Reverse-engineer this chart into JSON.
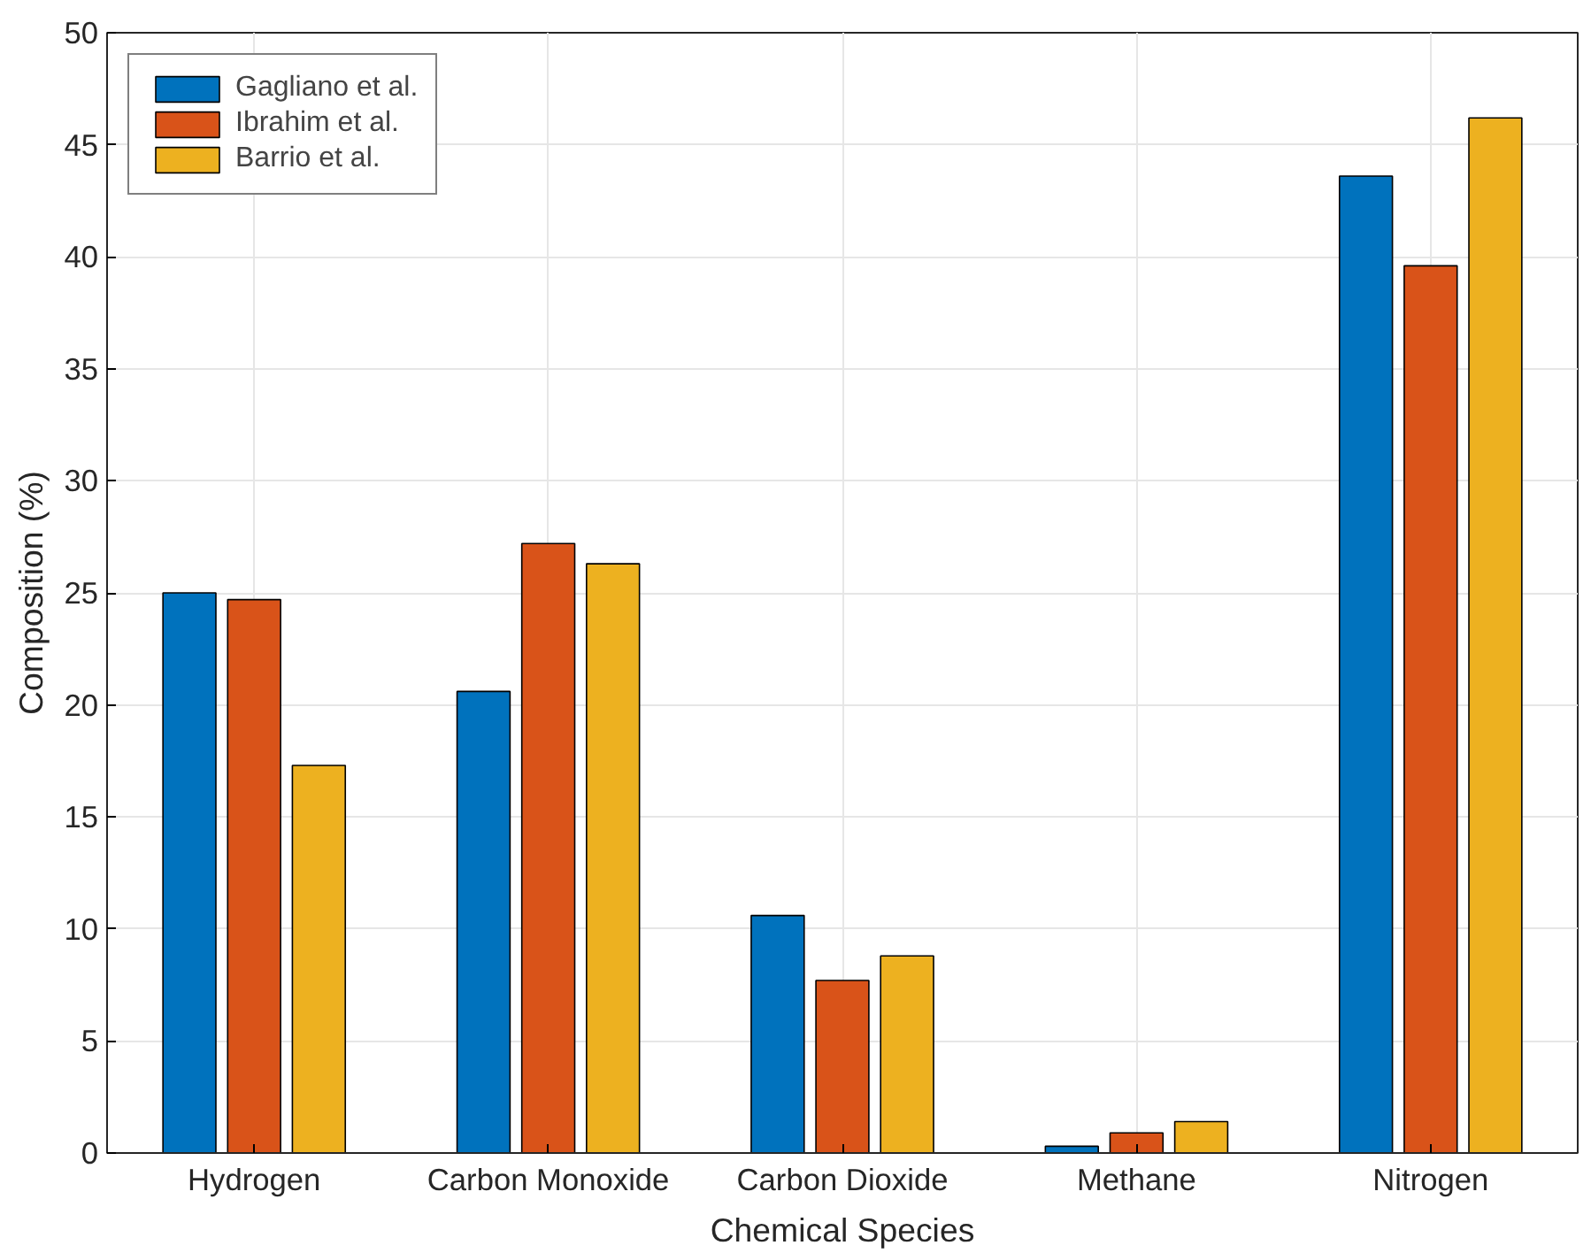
{
  "chart_data": {
    "type": "bar",
    "xlabel": "Chemical Species",
    "ylabel": "Composition (%)",
    "categories": [
      "Hydrogen",
      "Carbon Monoxide",
      "Carbon Dioxide",
      "Methane",
      "Nitrogen"
    ],
    "series": [
      {
        "name": "Gagliano et al.",
        "color": "#0072bd",
        "values": [
          25.0,
          20.6,
          10.6,
          0.3,
          43.6
        ]
      },
      {
        "name": "Ibrahim et al.",
        "color": "#d95319",
        "values": [
          24.7,
          27.2,
          7.7,
          0.9,
          39.6
        ]
      },
      {
        "name": "Barrio et al.",
        "color": "#edb120",
        "values": [
          17.3,
          26.3,
          8.8,
          1.4,
          46.2
        ]
      }
    ],
    "ylim": [
      0,
      50
    ],
    "yticks": [
      0,
      5,
      10,
      15,
      20,
      25,
      30,
      35,
      40,
      45,
      50
    ],
    "grid": true,
    "legend": "top left"
  }
}
